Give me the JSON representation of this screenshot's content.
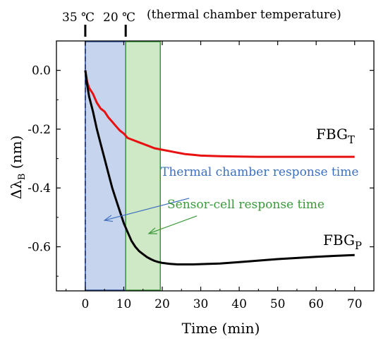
{
  "chart_data": {
    "type": "line",
    "xlabel": "Time (min)",
    "ylabel_main": "Δλ",
    "ylabel_sub": "B",
    "ylabel_unit": " (nm)",
    "xlim": [
      -7.5,
      75
    ],
    "ylim": [
      -0.75,
      0.1
    ],
    "x_ticks": [
      0,
      10,
      20,
      30,
      40,
      50,
      60,
      70
    ],
    "x_tick_labels": [
      "0",
      "10",
      "20",
      "30",
      "40",
      "50",
      "60",
      "70"
    ],
    "y_ticks": [
      0.0,
      -0.2,
      -0.4,
      -0.6
    ],
    "y_tick_labels": [
      "0.0",
      "-0.2",
      "-0.4",
      "-0.6"
    ],
    "top_labels": {
      "t1": "35 ℃",
      "t2": "20 ℃",
      "caption": "(thermal chamber temperature)"
    },
    "top_marker_x": [
      0,
      10.5
    ],
    "regions": [
      {
        "name": "thermal-chamber",
        "x_start": 0,
        "x_end": 10.5,
        "color": "#c6d4ee",
        "border": "#2d4f9e"
      },
      {
        "name": "sensor-cell",
        "x_start": 10.5,
        "x_end": 19.5,
        "color": "#cfe8c6",
        "border": "#3a9a3a"
      }
    ],
    "annotations": [
      {
        "text": "Thermal chamber response time",
        "color": "#3c6fbf",
        "arrow_from": [
          27,
          -0.435
        ],
        "arrow_to": [
          5,
          -0.51
        ]
      },
      {
        "text": "Sensor-cell response time",
        "color": "#3a9a3a",
        "arrow_from": [
          29,
          -0.495
        ],
        "arrow_to": [
          16.5,
          -0.555
        ]
      }
    ],
    "series": [
      {
        "name": "FBG",
        "sub": "T",
        "color": "#e81010",
        "x": [
          0,
          0.5,
          1,
          2,
          3,
          4,
          5,
          6,
          7,
          8,
          9,
          10,
          11,
          12,
          14,
          16,
          18,
          20,
          22,
          24,
          26,
          28,
          30,
          35,
          40,
          45,
          50,
          55,
          60,
          65,
          70
        ],
        "y": [
          0.0,
          -0.04,
          -0.06,
          -0.08,
          -0.11,
          -0.13,
          -0.14,
          -0.16,
          -0.175,
          -0.19,
          -0.205,
          -0.215,
          -0.23,
          -0.235,
          -0.245,
          -0.255,
          -0.265,
          -0.27,
          -0.275,
          -0.28,
          -0.285,
          -0.287,
          -0.29,
          -0.292,
          -0.293,
          -0.294,
          -0.294,
          -0.294,
          -0.294,
          -0.294,
          -0.294
        ]
      },
      {
        "name": "FBG",
        "sub": "P",
        "color": "#000000",
        "x": [
          0,
          0.5,
          1,
          2,
          3,
          4,
          5,
          6,
          7,
          8,
          9,
          10,
          11,
          12,
          13,
          14,
          15,
          16,
          17,
          18,
          19,
          20,
          22,
          24,
          26,
          28,
          30,
          35,
          40,
          45,
          50,
          55,
          60,
          65,
          70
        ],
        "y": [
          0.0,
          -0.05,
          -0.09,
          -0.14,
          -0.2,
          -0.25,
          -0.3,
          -0.35,
          -0.4,
          -0.44,
          -0.48,
          -0.52,
          -0.55,
          -0.58,
          -0.6,
          -0.615,
          -0.625,
          -0.635,
          -0.642,
          -0.648,
          -0.652,
          -0.655,
          -0.658,
          -0.66,
          -0.66,
          -0.66,
          -0.659,
          -0.657,
          -0.652,
          -0.647,
          -0.642,
          -0.638,
          -0.634,
          -0.631,
          -0.628
        ]
      }
    ]
  }
}
